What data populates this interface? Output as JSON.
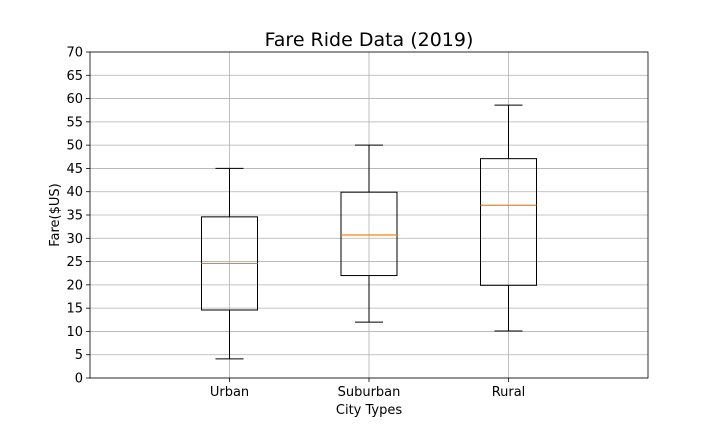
{
  "chart_data": {
    "type": "box",
    "title": "Fare Ride Data (2019)",
    "xlabel": "City Types",
    "ylabel": "Fare($US)",
    "ylim": [
      0,
      70
    ],
    "yticks": [
      0,
      5,
      10,
      15,
      20,
      25,
      30,
      35,
      40,
      45,
      50,
      55,
      60,
      65,
      70
    ],
    "grid": true,
    "median_color": "#ff7f0e",
    "categories": [
      "Urban",
      "Suburban",
      "Rural"
    ],
    "boxes": [
      {
        "category": "Urban",
        "whisker_low": 4.1,
        "q1": 14.6,
        "median": 24.6,
        "q3": 34.6,
        "whisker_high": 45.0
      },
      {
        "category": "Suburban",
        "whisker_low": 12.0,
        "q1": 22.0,
        "median": 30.7,
        "q3": 39.9,
        "whisker_high": 50.0
      },
      {
        "category": "Rural",
        "whisker_low": 10.1,
        "q1": 19.9,
        "median": 37.1,
        "q3": 47.1,
        "whisker_high": 58.6
      }
    ]
  }
}
